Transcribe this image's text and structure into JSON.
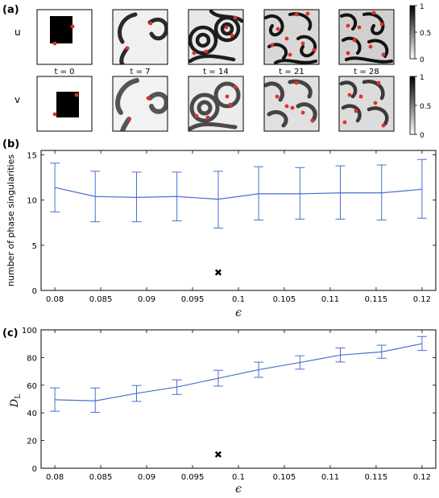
{
  "panels": {
    "a": {
      "label": "(a)",
      "row_labels": [
        "u",
        "v"
      ],
      "time_labels": [
        "t = 0",
        "t = 7",
        "t = 14",
        "t = 21",
        "t = 28"
      ],
      "colorbar_ticks": [
        "1",
        "0.5",
        "0"
      ],
      "colors": {
        "excited": "#111111",
        "rest": "#f2f2f2",
        "singularity": "#e0302c"
      }
    },
    "b": {
      "label": "(b)"
    },
    "c": {
      "label": "(c)"
    }
  },
  "chart_data": [
    {
      "type": "line",
      "panel": "b",
      "xlabel": "ϵ",
      "ylabel": "number of phase singularities",
      "xlim": [
        0.0785,
        0.1215
      ],
      "ylim": [
        0,
        15.5
      ],
      "xticks": [
        0.08,
        0.085,
        0.09,
        0.095,
        0.1,
        0.105,
        0.11,
        0.115,
        0.12
      ],
      "yticks": [
        0,
        5,
        10,
        15
      ],
      "tick_labels_x": [
        "0.08",
        "0.085",
        "0.09",
        "0.095",
        "0.1",
        "0.105",
        "0.11",
        "0.115",
        "0.12"
      ],
      "tick_labels_y": [
        "0",
        "5",
        "10",
        "15"
      ],
      "color": "#4a6fd0",
      "x": [
        0.08,
        0.0844,
        0.0889,
        0.0933,
        0.0978,
        0.1022,
        0.1067,
        0.1111,
        0.1156,
        0.12
      ],
      "y": [
        11.4,
        10.4,
        10.3,
        10.4,
        10.1,
        10.7,
        10.7,
        10.8,
        10.8,
        11.2
      ],
      "err_low": [
        8.7,
        7.6,
        7.6,
        7.7,
        6.9,
        7.8,
        7.9,
        7.9,
        7.8,
        8.0
      ],
      "err_high": [
        14.1,
        13.2,
        13.1,
        13.1,
        13.2,
        13.7,
        13.6,
        13.8,
        13.9,
        14.5
      ],
      "marker": {
        "x": 0.0978,
        "y": 2.0
      }
    },
    {
      "type": "line",
      "panel": "c",
      "xlabel": "ϵ",
      "ylabel": "D",
      "ylabel_sub": "L",
      "xlim": [
        0.0785,
        0.1215
      ],
      "ylim": [
        0,
        100
      ],
      "xticks": [
        0.08,
        0.085,
        0.09,
        0.095,
        0.1,
        0.105,
        0.11,
        0.115,
        0.12
      ],
      "yticks": [
        0,
        20,
        40,
        60,
        80,
        100
      ],
      "tick_labels_x": [
        "0.08",
        "0.085",
        "0.09",
        "0.095",
        "0.1",
        "0.105",
        "0.11",
        "0.115",
        "0.12"
      ],
      "tick_labels_y": [
        "0",
        "20",
        "40",
        "60",
        "80",
        "100"
      ],
      "color": "#4a6fd0",
      "x": [
        0.08,
        0.0844,
        0.0889,
        0.0933,
        0.0978,
        0.1022,
        0.1067,
        0.1111,
        0.1156,
        0.12
      ],
      "y": [
        49.5,
        48.7,
        54.1,
        58.7,
        65.0,
        71.2,
        76.4,
        81.8,
        84.1,
        90.0
      ],
      "err_low": [
        41.2,
        40.4,
        48.3,
        53.3,
        59.3,
        65.7,
        71.6,
        76.8,
        79.5,
        85.1
      ],
      "err_high": [
        58.1,
        58.0,
        59.8,
        63.9,
        70.8,
        76.7,
        81.3,
        86.9,
        88.9,
        95.2
      ],
      "marker": {
        "x": 0.0978,
        "y": 10.0
      }
    }
  ]
}
